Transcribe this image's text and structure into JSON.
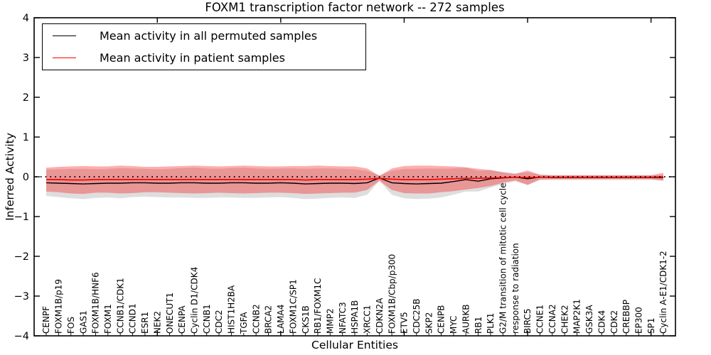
{
  "chart_data": {
    "type": "line",
    "title": "FOXM1 transcription factor network -- 272 samples",
    "xlabel": "Cellular Entities",
    "ylabel": "Inferred Activity",
    "ylim": [
      -4,
      4
    ],
    "yticks": [
      -4,
      -3,
      -2,
      -1,
      0,
      1,
      2,
      3,
      4
    ],
    "ytick_labels": [
      "−4",
      "−3",
      "−2",
      "−1",
      "0",
      "1",
      "2",
      "3",
      "4"
    ],
    "grid": false,
    "legend_position": "upper left",
    "zero_reference_line": "dotted black at y=0",
    "major_x_tick_indices": [
      9,
      19,
      29,
      39,
      49
    ],
    "categories": [
      "CENPF",
      "FOXM1B/p19",
      "FOS",
      "GAS1",
      "FOXM1B/HNF6",
      "FOXM1",
      "CCNB1/CDK1",
      "CCND1",
      "ESR1",
      "NEK2",
      "ONECUT1",
      "CENPA",
      "Cyclin D1/CDK4",
      "CCNB1",
      "CDC2",
      "HIST1H2BA",
      "TGFA",
      "CCNB2",
      "BRCA2",
      "LAMA4",
      "FOXM1C/SP1",
      "CKS1B",
      "RB1/FOXM1C",
      "MMP2",
      "NFATC3",
      "HSPA1B",
      "XRCC1",
      "CDKN2A",
      "FOXM1B/Cbp/p300",
      "ETV5",
      "CDC25B",
      "SKP2",
      "CENPB",
      "MYC",
      "AURKB",
      "RB1",
      "PLK1",
      "G2/M transition of mitotic cell cycle",
      "response to radiation",
      "BIRC5",
      "CCNE1",
      "CCNA2",
      "CHEK2",
      "MAP2K1",
      "GSK3A",
      "CDK4",
      "CDK2",
      "CREBBP",
      "EP300",
      "SP1",
      "Cyclin A-E1/CDK1-2"
    ],
    "series": [
      {
        "name": "Mean activity in all permuted samples",
        "color": "#000000",
        "band_color": "#999999",
        "band_opacity": 0.32,
        "means": [
          -0.15,
          -0.16,
          -0.17,
          -0.18,
          -0.17,
          -0.16,
          -0.16,
          -0.15,
          -0.15,
          -0.16,
          -0.16,
          -0.15,
          -0.15,
          -0.16,
          -0.16,
          -0.15,
          -0.15,
          -0.16,
          -0.16,
          -0.15,
          -0.16,
          -0.18,
          -0.17,
          -0.16,
          -0.16,
          -0.17,
          -0.15,
          -0.03,
          -0.15,
          -0.17,
          -0.18,
          -0.17,
          -0.16,
          -0.12,
          -0.07,
          -0.11,
          -0.05,
          -0.03,
          -0.01,
          -0.05,
          -0.01,
          -0.02,
          -0.02,
          -0.02,
          -0.02,
          -0.02,
          -0.02,
          -0.02,
          -0.02,
          -0.02,
          -0.02
        ],
        "band_halfwidth": [
          0.33,
          0.35,
          0.37,
          0.38,
          0.36,
          0.36,
          0.38,
          0.36,
          0.35,
          0.35,
          0.36,
          0.37,
          0.38,
          0.37,
          0.36,
          0.37,
          0.38,
          0.37,
          0.36,
          0.36,
          0.37,
          0.38,
          0.38,
          0.37,
          0.36,
          0.36,
          0.3,
          0.07,
          0.3,
          0.37,
          0.38,
          0.38,
          0.36,
          0.33,
          0.3,
          0.26,
          0.22,
          0.15,
          0.1,
          0.16,
          0.07,
          0.06,
          0.06,
          0.06,
          0.06,
          0.06,
          0.06,
          0.06,
          0.06,
          0.06,
          0.07
        ]
      },
      {
        "name": "Mean activity in patient samples",
        "color": "#ff0000",
        "band_color": "#ff0000",
        "band_opacity": 0.32,
        "means": [
          -0.07,
          -0.07,
          -0.08,
          -0.08,
          -0.07,
          -0.07,
          -0.07,
          -0.07,
          -0.07,
          -0.07,
          -0.07,
          -0.07,
          -0.07,
          -0.07,
          -0.07,
          -0.07,
          -0.07,
          -0.07,
          -0.07,
          -0.07,
          -0.07,
          -0.08,
          -0.07,
          -0.07,
          -0.07,
          -0.07,
          -0.06,
          -0.04,
          -0.06,
          -0.07,
          -0.07,
          -0.07,
          -0.06,
          -0.05,
          -0.04,
          -0.04,
          -0.03,
          -0.02,
          -0.01,
          -0.02,
          -0.01,
          -0.01,
          -0.01,
          -0.01,
          -0.01,
          -0.01,
          -0.01,
          -0.01,
          -0.01,
          -0.01,
          0.0
        ],
        "band_halfwidth": [
          0.3,
          0.32,
          0.34,
          0.35,
          0.33,
          0.33,
          0.35,
          0.34,
          0.32,
          0.32,
          0.33,
          0.34,
          0.35,
          0.34,
          0.33,
          0.34,
          0.35,
          0.34,
          0.33,
          0.33,
          0.34,
          0.35,
          0.35,
          0.34,
          0.33,
          0.33,
          0.27,
          0.06,
          0.27,
          0.34,
          0.35,
          0.35,
          0.33,
          0.31,
          0.28,
          0.24,
          0.2,
          0.13,
          0.08,
          0.18,
          0.06,
          0.05,
          0.05,
          0.05,
          0.05,
          0.05,
          0.05,
          0.05,
          0.05,
          0.05,
          0.1
        ]
      }
    ]
  },
  "legend": {
    "permuted_label": "Mean activity in all permuted samples",
    "patient_label": "Mean activity in patient samples"
  }
}
